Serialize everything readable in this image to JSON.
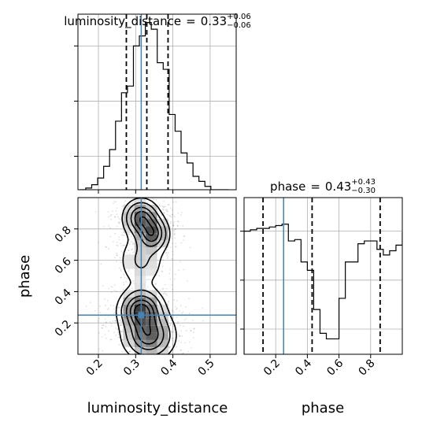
{
  "chart_data": [
    {
      "type": "histogram",
      "panel": "luminosity_distance marginal",
      "title_param": "luminosity_distance",
      "title_value": "0.33",
      "title_plus": "+0.06",
      "title_minus": "−0.06",
      "x_range": [
        0.145,
        0.57
      ],
      "x_ticks": [
        0.2,
        0.3,
        0.4,
        0.5
      ],
      "x_tick_labels": [
        "0.2",
        "0.3",
        "0.4",
        "0.5"
      ],
      "bin_edges": [
        0.15,
        0.166,
        0.182,
        0.198,
        0.214,
        0.23,
        0.246,
        0.262,
        0.278,
        0.294,
        0.31,
        0.326,
        0.342,
        0.358,
        0.374,
        0.39,
        0.406,
        0.422,
        0.438,
        0.454,
        0.47,
        0.486,
        0.502,
        0.518,
        0.534,
        0.55
      ],
      "density": [
        0.0,
        0.01,
        0.03,
        0.07,
        0.14,
        0.24,
        0.41,
        0.58,
        0.62,
        0.86,
        0.92,
        1.0,
        0.96,
        0.76,
        0.72,
        0.45,
        0.35,
        0.22,
        0.16,
        0.08,
        0.05,
        0.02,
        0.0,
        0.0,
        0.0
      ],
      "y_max": 1.05,
      "quantiles": [
        0.275,
        0.33,
        0.387
      ],
      "truth": 0.315,
      "grid": true
    },
    {
      "type": "histogram",
      "panel": "phase marginal",
      "title_param": "phase",
      "title_value": "0.43",
      "title_plus": "+0.43",
      "title_minus": "−0.30",
      "x_range": [
        0.0,
        1.0
      ],
      "x_ticks": [
        0.2,
        0.4,
        0.6,
        0.8
      ],
      "x_tick_labels": [
        "0.2",
        "0.4",
        "0.6",
        "0.8"
      ],
      "bin_edges": [
        0.0,
        0.04,
        0.08,
        0.12,
        0.16,
        0.2,
        0.24,
        0.28,
        0.32,
        0.36,
        0.4,
        0.44,
        0.48,
        0.52,
        0.56,
        0.6,
        0.64,
        0.68,
        0.72,
        0.76,
        0.8,
        0.84,
        0.88,
        0.92,
        0.96,
        1.0
      ],
      "density": [
        1.0,
        1.01,
        1.02,
        1.02,
        1.03,
        1.04,
        1.05,
        0.93,
        0.94,
        0.78,
        0.72,
        0.44,
        0.27,
        0.23,
        0.23,
        0.52,
        0.78,
        0.78,
        0.91,
        0.93,
        0.93,
        0.87,
        0.83,
        0.86,
        0.9,
        0.99
      ],
      "y_range": [
        0.12,
        1.24
      ],
      "quantiles": [
        0.12,
        0.43,
        0.86
      ],
      "truth": 0.25,
      "grid": true
    },
    {
      "type": "contour",
      "panel": "phase vs luminosity_distance",
      "x_range": [
        0.145,
        0.57
      ],
      "y_range": [
        0.0,
        1.0
      ],
      "x_ticks": [
        0.2,
        0.3,
        0.4,
        0.5
      ],
      "x_tick_labels": [
        "0.2",
        "0.3",
        "0.4",
        "0.5"
      ],
      "y_ticks": [
        0.2,
        0.4,
        0.6,
        0.8
      ],
      "y_tick_labels": [
        "0.2",
        "0.4",
        "0.6",
        "0.8"
      ],
      "xlabel": "luminosity_distance",
      "ylabel": "phase",
      "truth": {
        "x": 0.315,
        "y": 0.25
      },
      "modes": [
        {
          "x": 0.315,
          "y": 0.87,
          "sx": 0.024,
          "sy": 0.06,
          "w": 1.0
        },
        {
          "x": 0.345,
          "y": 0.77,
          "sx": 0.022,
          "sy": 0.06,
          "w": 0.95
        },
        {
          "x": 0.315,
          "y": 0.6,
          "sx": 0.034,
          "sy": 0.1,
          "w": 0.3
        },
        {
          "x": 0.315,
          "y": 0.28,
          "sx": 0.03,
          "sy": 0.07,
          "w": 1.2
        },
        {
          "x": 0.335,
          "y": 0.12,
          "sx": 0.035,
          "sy": 0.08,
          "w": 1.0
        }
      ],
      "levels": [
        0.08,
        0.2,
        0.4,
        0.6,
        0.8
      ],
      "scatter_count": 1400,
      "grid": true
    }
  ],
  "bottom_labels": {
    "x_left": "luminosity_distance",
    "x_right": "phase",
    "y_left": "phase"
  },
  "colors": {
    "truth": "#4682b4",
    "hist_line": "#000000",
    "quantile": "#000000",
    "grid": "#b0b0b0",
    "scatter": "#000000"
  }
}
